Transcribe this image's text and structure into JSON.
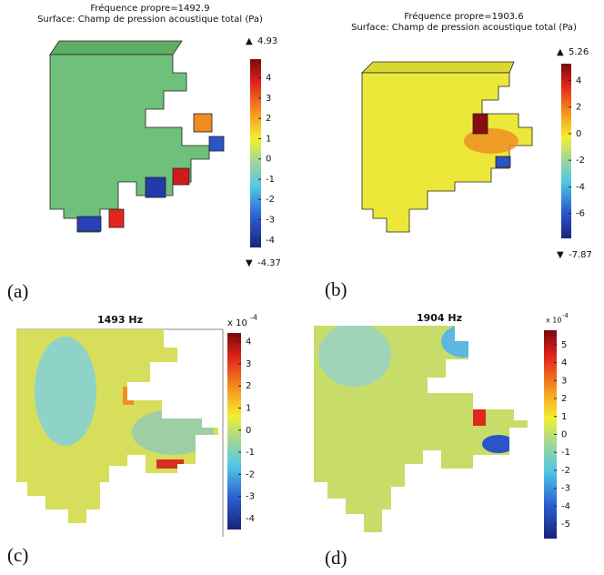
{
  "panels": [
    {
      "label": "(a)",
      "title_lines": [
        "Fréquence propre=1492.9",
        "Surface: Champ de pression acoustique total (Pa)"
      ],
      "max": 4.93,
      "min": -4.37,
      "ticks": [
        4,
        3,
        2,
        1,
        0,
        -1,
        -2,
        -3,
        -4
      ]
    },
    {
      "label": "(b)",
      "title_lines": [
        "Fréquence propre=1903.6",
        "Surface: Champ de pression acoustique total (Pa)"
      ],
      "max": 5.26,
      "min": -7.87,
      "ticks": [
        4,
        2,
        0,
        -2,
        -4,
        -6
      ]
    },
    {
      "label": "(c)",
      "title": "1493 Hz",
      "scale_base": "x 10",
      "scale_exp": "-4",
      "cbar_lim": [
        -4.5,
        4.4
      ],
      "ticks": [
        4,
        3,
        2,
        1,
        0,
        -1,
        -2,
        -3,
        -4
      ]
    },
    {
      "label": "(d)",
      "title": "1904 Hz",
      "scale_base": "x 10",
      "scale_exp": "-4",
      "cbar_lim": [
        -5.8,
        5.8
      ],
      "ticks": [
        5,
        4,
        3,
        2,
        1,
        0,
        -1,
        -2,
        -3,
        -4,
        -5
      ]
    }
  ]
}
